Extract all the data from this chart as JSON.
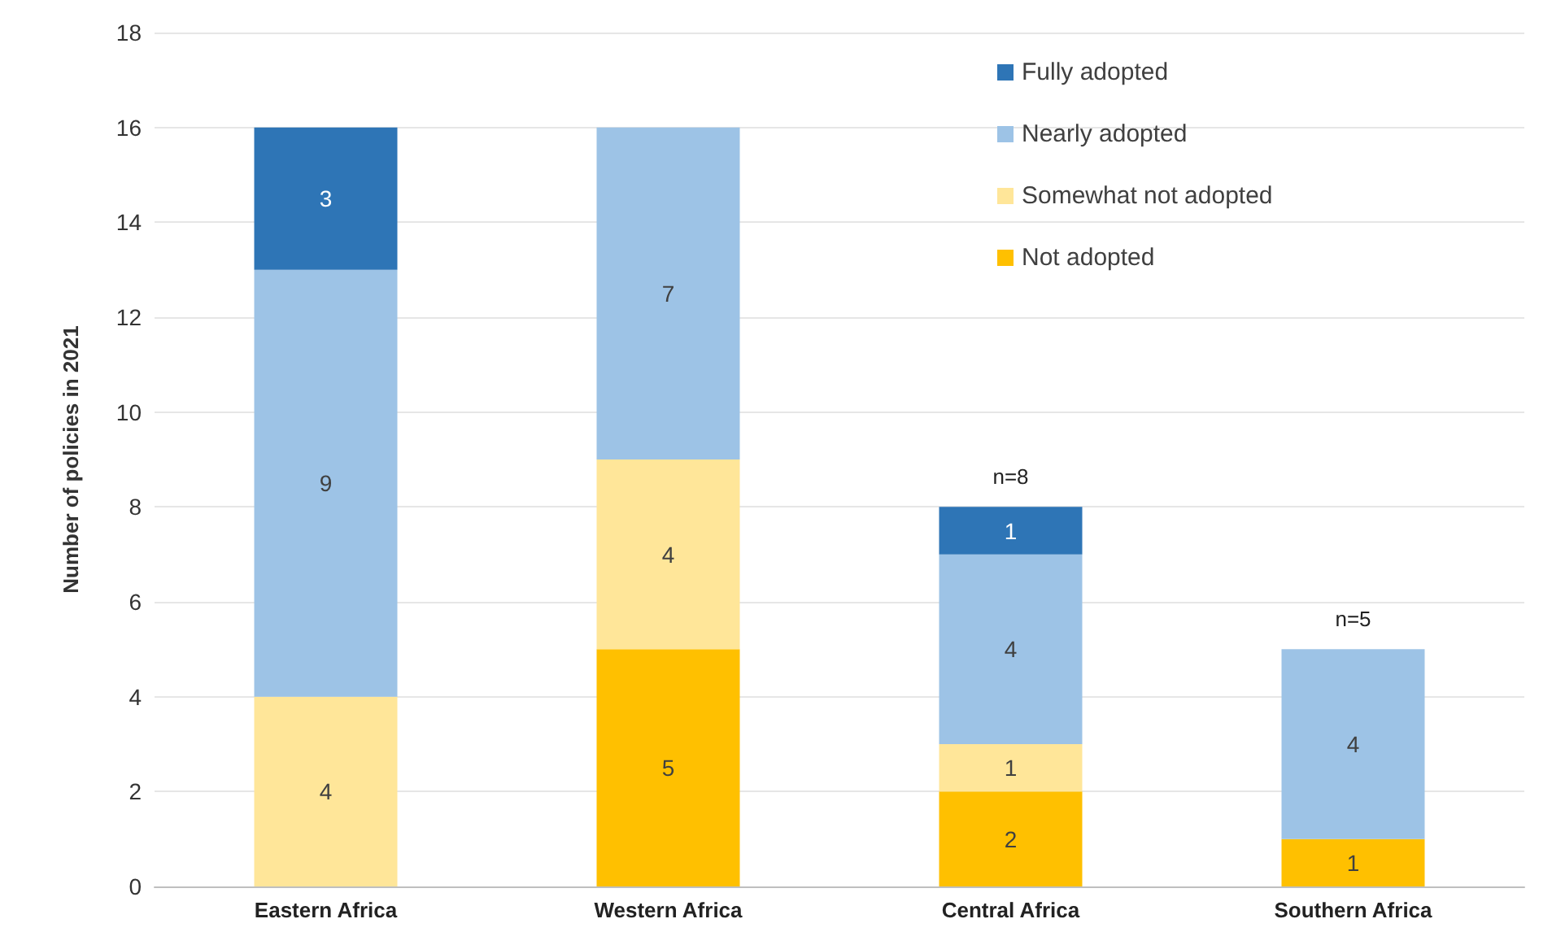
{
  "chart_data": {
    "type": "bar",
    "stacked": true,
    "ylabel": "Number of policies in 2021",
    "categories": [
      "Eastern Africa",
      "Western Africa",
      "Central Africa",
      "Southern Africa"
    ],
    "series": [
      {
        "name": "Not adopted",
        "color": "#ffc000",
        "values": [
          null,
          5,
          2,
          1
        ]
      },
      {
        "name": "Somewhat not adopted",
        "color": "#ffe699",
        "values": [
          4,
          4,
          1,
          null
        ]
      },
      {
        "name": "Nearly adopted",
        "color": "#9dc3e6",
        "values": [
          9,
          7,
          4,
          4
        ]
      },
      {
        "name": "Fully adopted",
        "color": "#2e75b6",
        "values": [
          3,
          null,
          1,
          null
        ]
      }
    ],
    "ylim": [
      0,
      18
    ],
    "yticks": [
      0,
      2,
      4,
      6,
      8,
      10,
      12,
      14,
      16,
      18
    ],
    "grid": "y",
    "legend": "top right",
    "data_labels": true,
    "annotations": [
      {
        "text": "n=8",
        "x": "Central Africa",
        "y": 8
      },
      {
        "text": "n=5",
        "x": "Southern Africa",
        "y": 5
      }
    ]
  }
}
